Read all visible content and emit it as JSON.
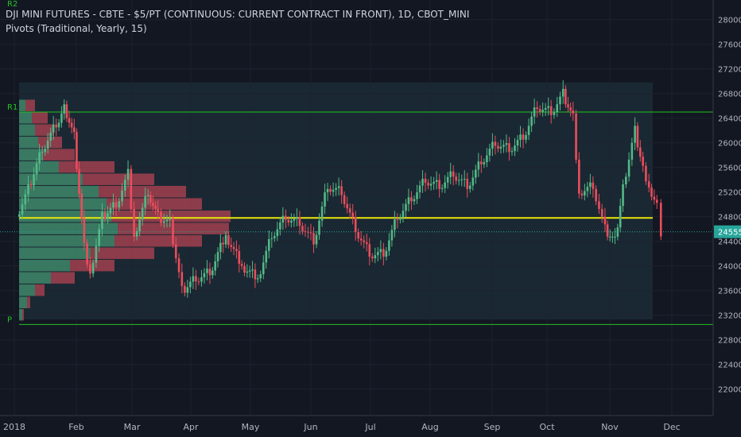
{
  "header": {
    "title": "DJI MINI FUTURES - CBTE - $5/PT (CONTINUOUS: CURRENT CONTRACT IN FRONT), 1D, CBOT_MINI",
    "indicator": "Pivots (Traditional, Yearly, 15)"
  },
  "colors": {
    "background": "#131722",
    "up": "#53b987",
    "down": "#eb4d5c",
    "pivot_line": "#22c322",
    "poc_line": "#e8e80c",
    "price_badge": "#26a69a",
    "profile_bg": "#1c2a35"
  },
  "chart_data": {
    "type": "candlestick",
    "title": "DJI MINI FUTURES - CBTE - $5/PT (CONTINUOUS: CURRENT CONTRACT IN FRONT), 1D, CBOT_MINI",
    "x_ticks": [
      "2018",
      "Feb",
      "Mar",
      "Apr",
      "May",
      "Jun",
      "Jul",
      "Aug",
      "Sep",
      "Oct",
      "Nov",
      "Dec"
    ],
    "y_ticks": [
      22000,
      22400,
      22800,
      23200,
      23600,
      24000,
      24400,
      24800,
      25200,
      25600,
      26000,
      26400,
      26800,
      27200,
      27600,
      28000
    ],
    "y_range": [
      21600,
      28200
    ],
    "pivot_levels": [
      {
        "label": "R2",
        "value": 28300
      },
      {
        "label": "R1",
        "value": 26500
      },
      {
        "label": "P",
        "value": 23050
      }
    ],
    "poc_level": 24780,
    "last_price": 24555,
    "close_path": [
      [
        "2018-01-02",
        24800
      ],
      [
        "2018-01-08",
        25250
      ],
      [
        "2018-01-15",
        25900
      ],
      [
        "2018-01-22",
        26300
      ],
      [
        "2018-01-26",
        26600
      ],
      [
        "2018-01-31",
        26100
      ],
      [
        "2018-02-05",
        24300
      ],
      [
        "2018-02-08",
        23900
      ],
      [
        "2018-02-14",
        24800
      ],
      [
        "2018-02-21",
        25000
      ],
      [
        "2018-02-27",
        25500
      ],
      [
        "2018-03-02",
        24500
      ],
      [
        "2018-03-09",
        25200
      ],
      [
        "2018-03-14",
        24800
      ],
      [
        "2018-03-20",
        24700
      ],
      [
        "2018-03-26",
        23600
      ],
      [
        "2018-04-02",
        23800
      ],
      [
        "2018-04-09",
        23900
      ],
      [
        "2018-04-17",
        24500
      ],
      [
        "2018-04-25",
        24000
      ],
      [
        "2018-05-03",
        23800
      ],
      [
        "2018-05-10",
        24500
      ],
      [
        "2018-05-17",
        24800
      ],
      [
        "2018-05-24",
        24700
      ],
      [
        "2018-05-31",
        24400
      ],
      [
        "2018-06-07",
        25300
      ],
      [
        "2018-06-14",
        25200
      ],
      [
        "2018-06-21",
        24600
      ],
      [
        "2018-06-28",
        24200
      ],
      [
        "2018-07-05",
        24200
      ],
      [
        "2018-07-12",
        24800
      ],
      [
        "2018-07-19",
        25100
      ],
      [
        "2018-07-26",
        25400
      ],
      [
        "2018-08-02",
        25300
      ],
      [
        "2018-08-09",
        25500
      ],
      [
        "2018-08-16",
        25300
      ],
      [
        "2018-08-23",
        25700
      ],
      [
        "2018-08-30",
        26000
      ],
      [
        "2018-09-06",
        25900
      ],
      [
        "2018-09-13",
        26100
      ],
      [
        "2018-09-20",
        26600
      ],
      [
        "2018-09-27",
        26500
      ],
      [
        "2018-10-03",
        26800
      ],
      [
        "2018-10-08",
        26400
      ],
      [
        "2018-10-11",
        25200
      ],
      [
        "2018-10-18",
        25300
      ],
      [
        "2018-10-24",
        24600
      ],
      [
        "2018-10-29",
        24400
      ],
      [
        "2018-11-02",
        25300
      ],
      [
        "2018-11-08",
        26200
      ],
      [
        "2018-11-12",
        25600
      ],
      [
        "2018-11-15",
        25300
      ],
      [
        "2018-11-19",
        25000
      ],
      [
        "2018-11-21",
        24555
      ]
    ],
    "volume_profile": {
      "price_levels": [
        23200,
        23400,
        23600,
        23800,
        24000,
        24200,
        24400,
        24600,
        24800,
        25000,
        25200,
        25400,
        25600,
        25800,
        26000,
        26200,
        26400,
        26600
      ],
      "up_volume": [
        2,
        5,
        10,
        20,
        32,
        45,
        60,
        62,
        58,
        55,
        50,
        40,
        25,
        15,
        12,
        10,
        8,
        4
      ],
      "down_volume": [
        1,
        2,
        6,
        15,
        28,
        40,
        55,
        70,
        75,
        60,
        55,
        45,
        35,
        20,
        15,
        12,
        10,
        6
      ]
    }
  }
}
